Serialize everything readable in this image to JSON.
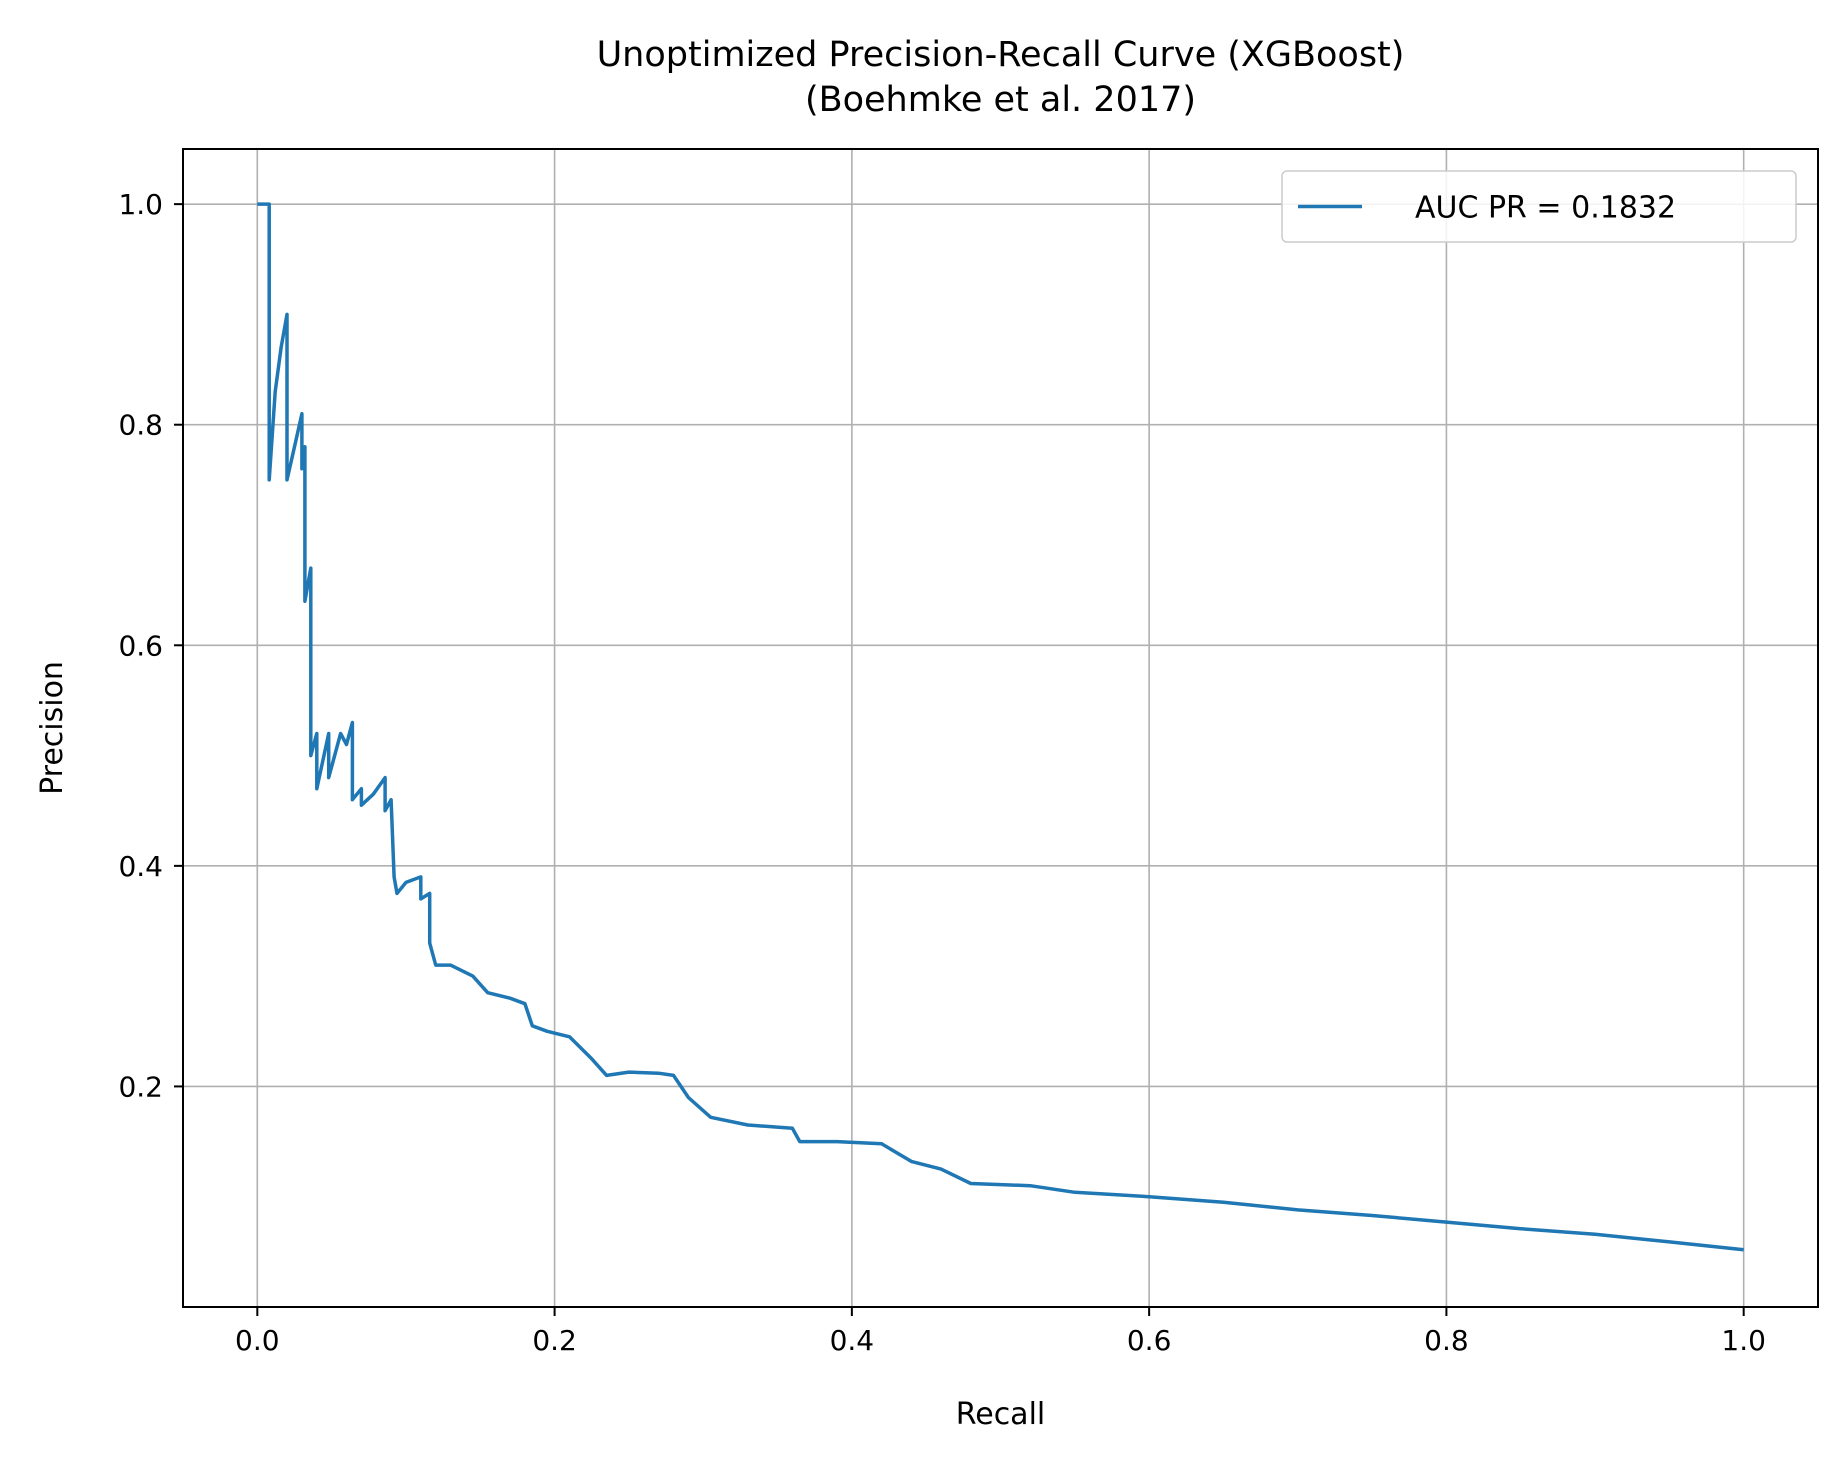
{
  "chart_data": {
    "type": "line",
    "title_lines": [
      "Unoptimized Precision-Recall Curve (XGBoost)",
      "(Boehmke et al. 2017)"
    ],
    "xlabel": "Recall",
    "ylabel": "Precision",
    "xlim": [
      -0.05,
      1.05
    ],
    "ylim": [
      0.0,
      1.05
    ],
    "x_ticks": [
      0.0,
      0.2,
      0.4,
      0.6,
      0.8,
      1.0
    ],
    "x_tick_labels": [
      "0.0",
      "0.2",
      "0.4",
      "0.6",
      "0.8",
      "1.0"
    ],
    "y_ticks": [
      0.2,
      0.4,
      0.6,
      0.8,
      1.0
    ],
    "y_tick_labels": [
      "0.2",
      "0.4",
      "0.6",
      "0.8",
      "1.0"
    ],
    "grid": true,
    "legend_position": "top-right",
    "series": [
      {
        "name": "AUC PR = 0.1832",
        "color": "#1f77b4",
        "points": [
          [
            0.0,
            1.0
          ],
          [
            0.008,
            1.0
          ],
          [
            0.008,
            0.75
          ],
          [
            0.012,
            0.83
          ],
          [
            0.016,
            0.87
          ],
          [
            0.02,
            0.9
          ],
          [
            0.02,
            0.75
          ],
          [
            0.025,
            0.78
          ],
          [
            0.03,
            0.81
          ],
          [
            0.03,
            0.76
          ],
          [
            0.032,
            0.78
          ],
          [
            0.032,
            0.64
          ],
          [
            0.036,
            0.67
          ],
          [
            0.036,
            0.5
          ],
          [
            0.04,
            0.52
          ],
          [
            0.04,
            0.47
          ],
          [
            0.048,
            0.52
          ],
          [
            0.048,
            0.48
          ],
          [
            0.056,
            0.52
          ],
          [
            0.06,
            0.51
          ],
          [
            0.064,
            0.53
          ],
          [
            0.064,
            0.46
          ],
          [
            0.07,
            0.47
          ],
          [
            0.07,
            0.455
          ],
          [
            0.078,
            0.465
          ],
          [
            0.086,
            0.48
          ],
          [
            0.086,
            0.45
          ],
          [
            0.09,
            0.46
          ],
          [
            0.092,
            0.39
          ],
          [
            0.094,
            0.375
          ],
          [
            0.1,
            0.385
          ],
          [
            0.11,
            0.39
          ],
          [
            0.11,
            0.37
          ],
          [
            0.116,
            0.375
          ],
          [
            0.116,
            0.33
          ],
          [
            0.12,
            0.31
          ],
          [
            0.13,
            0.31
          ],
          [
            0.145,
            0.3
          ],
          [
            0.155,
            0.285
          ],
          [
            0.17,
            0.28
          ],
          [
            0.18,
            0.275
          ],
          [
            0.185,
            0.255
          ],
          [
            0.195,
            0.25
          ],
          [
            0.21,
            0.245
          ],
          [
            0.225,
            0.225
          ],
          [
            0.235,
            0.21
          ],
          [
            0.25,
            0.213
          ],
          [
            0.27,
            0.212
          ],
          [
            0.28,
            0.21
          ],
          [
            0.29,
            0.19
          ],
          [
            0.305,
            0.172
          ],
          [
            0.33,
            0.165
          ],
          [
            0.36,
            0.162
          ],
          [
            0.365,
            0.15
          ],
          [
            0.39,
            0.15
          ],
          [
            0.42,
            0.148
          ],
          [
            0.44,
            0.132
          ],
          [
            0.46,
            0.125
          ],
          [
            0.48,
            0.112
          ],
          [
            0.52,
            0.11
          ],
          [
            0.55,
            0.104
          ],
          [
            0.6,
            0.1
          ],
          [
            0.65,
            0.095
          ],
          [
            0.7,
            0.088
          ],
          [
            0.75,
            0.083
          ],
          [
            0.8,
            0.077
          ],
          [
            0.85,
            0.071
          ],
          [
            0.9,
            0.066
          ],
          [
            0.95,
            0.059
          ],
          [
            1.0,
            0.052
          ]
        ]
      }
    ]
  }
}
